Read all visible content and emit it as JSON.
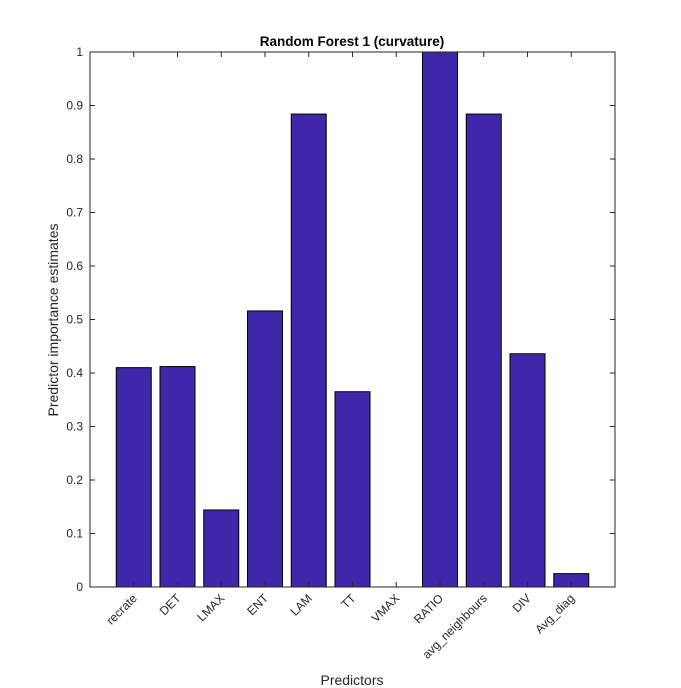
{
  "chart_data": {
    "type": "bar",
    "title": "Random Forest 1 (curvature)",
    "xlabel": "Predictors",
    "ylabel": "Predictor importance estimates",
    "categories": [
      "recrate",
      "DET",
      "LMAX",
      "ENT",
      "LAM",
      "TT",
      "VMAX",
      "RATIO",
      "avg_neighbours",
      "DIV",
      "Avg_diag"
    ],
    "values": [
      0.41,
      0.412,
      0.144,
      0.516,
      0.884,
      0.365,
      0.0,
      1.0,
      0.884,
      0.436,
      0.025
    ],
    "ylim": [
      0,
      1
    ],
    "yticks": [
      "0",
      "0.1",
      "0.2",
      "0.3",
      "0.4",
      "0.5",
      "0.6",
      "0.7",
      "0.8",
      "0.9",
      "1"
    ],
    "grid": false,
    "bar_color": "#3e27a8",
    "edge_color": "#000000"
  }
}
